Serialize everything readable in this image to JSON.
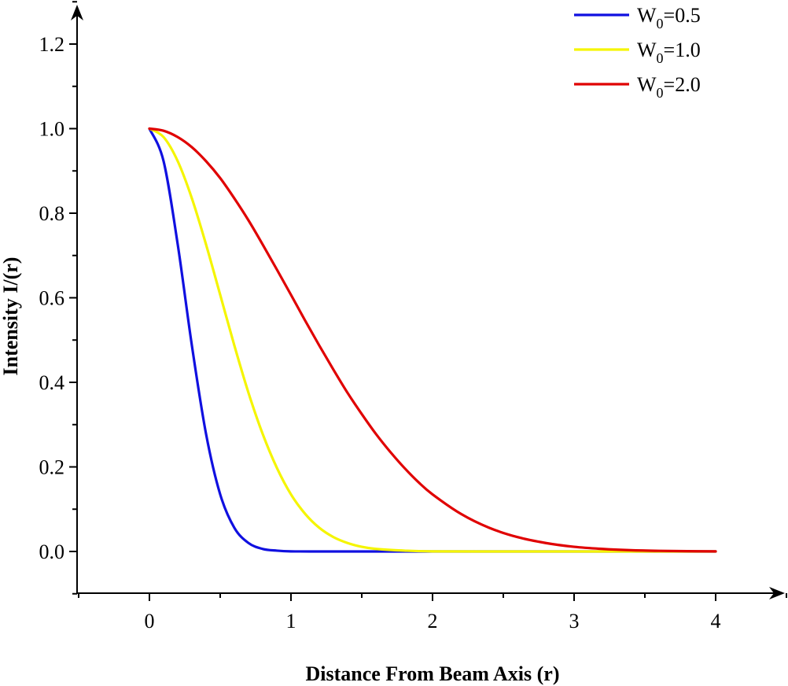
{
  "chart_data": {
    "type": "line",
    "title": "",
    "xlabel": "Distance From Beam Axis (r)",
    "ylabel": "Intensity I/(r)",
    "xlim": [
      -0.5,
      4.5
    ],
    "ylim": [
      -0.1,
      1.3
    ],
    "x_ticks": [
      0,
      1,
      2,
      3,
      4
    ],
    "x_tick_labels": [
      "0",
      "1",
      "2",
      "3",
      "4"
    ],
    "y_ticks": [
      0.0,
      0.2,
      0.4,
      0.6,
      0.8,
      1.0,
      1.2
    ],
    "y_tick_labels": [
      "0.0",
      "0.2",
      "0.4",
      "0.6",
      "0.8",
      "1.0",
      "1.2"
    ],
    "grid": false,
    "legend_position": "top-right",
    "series": [
      {
        "name_main": "W",
        "name_sub": "0",
        "name_value": "=0.5",
        "color": "#1010e0",
        "x": [
          0,
          0.1,
          0.2,
          0.3,
          0.4,
          0.5,
          0.6,
          0.7,
          0.8,
          0.9,
          1.0,
          1.2,
          1.5,
          2.0,
          3.0,
          4.0
        ],
        "y": [
          1.0,
          0.923,
          0.726,
          0.487,
          0.278,
          0.135,
          0.056,
          0.02,
          0.006,
          0.002,
          0.0003,
          0.0,
          0.0,
          0.0,
          0.0,
          0.0
        ]
      },
      {
        "name_main": "W",
        "name_sub": "0",
        "name_value": "=1.0",
        "color": "#f5f500",
        "x": [
          0,
          0.1,
          0.2,
          0.3,
          0.4,
          0.5,
          0.6,
          0.7,
          0.8,
          0.9,
          1.0,
          1.1,
          1.2,
          1.3,
          1.4,
          1.5,
          1.6,
          1.8,
          2.0,
          2.5,
          3.0,
          4.0
        ],
        "y": [
          1.0,
          0.98,
          0.923,
          0.835,
          0.726,
          0.607,
          0.487,
          0.375,
          0.278,
          0.198,
          0.135,
          0.089,
          0.056,
          0.034,
          0.02,
          0.011,
          0.006,
          0.002,
          0.0003,
          0.0,
          0.0,
          0.0
        ]
      },
      {
        "name_main": "W",
        "name_sub": "0",
        "name_value": "=2.0",
        "color": "#e00000",
        "x": [
          0,
          0.1,
          0.2,
          0.3,
          0.4,
          0.5,
          0.6,
          0.7,
          0.8,
          0.9,
          1.0,
          1.1,
          1.2,
          1.3,
          1.4,
          1.5,
          1.6,
          1.7,
          1.8,
          1.9,
          2.0,
          2.2,
          2.4,
          2.6,
          2.8,
          3.0,
          3.2,
          3.4,
          3.6,
          3.8,
          4.0
        ],
        "y": [
          1.0,
          0.995,
          0.98,
          0.956,
          0.923,
          0.883,
          0.835,
          0.783,
          0.726,
          0.667,
          0.607,
          0.546,
          0.487,
          0.43,
          0.375,
          0.325,
          0.278,
          0.236,
          0.198,
          0.164,
          0.135,
          0.089,
          0.056,
          0.034,
          0.02,
          0.011,
          0.006,
          0.003,
          0.0015,
          0.0007,
          0.0003
        ]
      }
    ]
  }
}
